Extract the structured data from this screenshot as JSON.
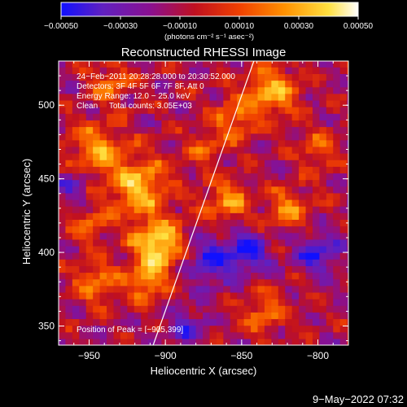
{
  "chart_data": {
    "type": "heatmap",
    "title": "Reconstructed RHESSI Image",
    "xlabel": "Heliocentric X (arcsec)",
    "ylabel": "Heliocentric Y (arcsec)",
    "xlim": [
      -970,
      -780
    ],
    "ylim": [
      337,
      530
    ],
    "xticks": [
      {
        "value": -950,
        "label": "−950"
      },
      {
        "value": -900,
        "label": "−900"
      },
      {
        "value": -850,
        "label": "−850"
      },
      {
        "value": -800,
        "label": "−800"
      }
    ],
    "yticks": [
      {
        "value": 350,
        "label": "350"
      },
      {
        "value": 400,
        "label": "400"
      },
      {
        "value": 450,
        "label": "450"
      },
      {
        "value": 500,
        "label": "500"
      }
    ],
    "colorbar": {
      "range": [
        -0.0005,
        0.0005
      ],
      "ticks": [
        {
          "value": -0.0005,
          "label": "−0.00050"
        },
        {
          "value": -0.0003,
          "label": "−0.00030"
        },
        {
          "value": -0.0001,
          "label": "−0.00010"
        },
        {
          "value": 0.0001,
          "label": "0.00010"
        },
        {
          "value": 0.0003,
          "label": "0.00030"
        },
        {
          "value": 0.0005,
          "label": "0.00050"
        }
      ],
      "unit_label": "(photons cm⁻² s⁻¹ asec⁻²)",
      "colors": [
        "#1010ff",
        "#6020c0",
        "#8a1090",
        "#c01020",
        "#f04000",
        "#ff9000",
        "#ffe040",
        "#ffffff"
      ]
    },
    "annotations": [
      "24−Feb−2011 20:28:28.000 to 20:30:52.000",
      "Detectors: 3F 4F 5F 6F 7F 8F, Att 0",
      "Energy Range: 12.0 − 25.0 keV",
      "Clean     Total counts: 3.05E+03"
    ],
    "peak_label": "Position of Peak = [−905,399]",
    "peak_position": [
      -905,
      399
    ],
    "limb_line": [
      [
        -908,
        337
      ],
      [
        -842,
        530
      ]
    ],
    "features": [
      {
        "x": -905,
        "y": 405,
        "sigma": 12,
        "amp": 0.0005
      },
      {
        "x": -918,
        "y": 445,
        "sigma": 14,
        "amp": 0.00042
      },
      {
        "x": -945,
        "y": 470,
        "sigma": 12,
        "amp": 0.00035
      },
      {
        "x": -945,
        "y": 380,
        "sigma": 10,
        "amp": 0.0003
      },
      {
        "x": -912,
        "y": 380,
        "sigma": 9,
        "amp": 0.00032
      },
      {
        "x": -860,
        "y": 435,
        "sigma": 10,
        "amp": 0.00033
      },
      {
        "x": -820,
        "y": 430,
        "sigma": 9,
        "amp": 0.0003
      },
      {
        "x": -830,
        "y": 510,
        "sigma": 12,
        "amp": 0.00038
      },
      {
        "x": -855,
        "y": 490,
        "sigma": 10,
        "amp": 0.0003
      },
      {
        "x": -800,
        "y": 470,
        "sigma": 9,
        "amp": 0.00025
      },
      {
        "x": -835,
        "y": 360,
        "sigma": 10,
        "amp": 0.00028
      },
      {
        "x": -950,
        "y": 420,
        "sigma": 9,
        "amp": 0.00022
      },
      {
        "x": -935,
        "y": 515,
        "sigma": 9,
        "amp": 0.00025
      },
      {
        "x": -875,
        "y": 470,
        "sigma": 8,
        "amp": 0.00022
      },
      {
        "x": -870,
        "y": 395,
        "sigma": 12,
        "amp": -0.0003
      },
      {
        "x": -845,
        "y": 400,
        "sigma": 10,
        "amp": -0.00028
      },
      {
        "x": -800,
        "y": 400,
        "sigma": 10,
        "amp": -0.0003
      },
      {
        "x": -960,
        "y": 445,
        "sigma": 8,
        "amp": -0.00022
      },
      {
        "x": -885,
        "y": 350,
        "sigma": 9,
        "amp": -0.00024
      }
    ]
  },
  "footer": {
    "date": "9−May−2022 07:32"
  }
}
